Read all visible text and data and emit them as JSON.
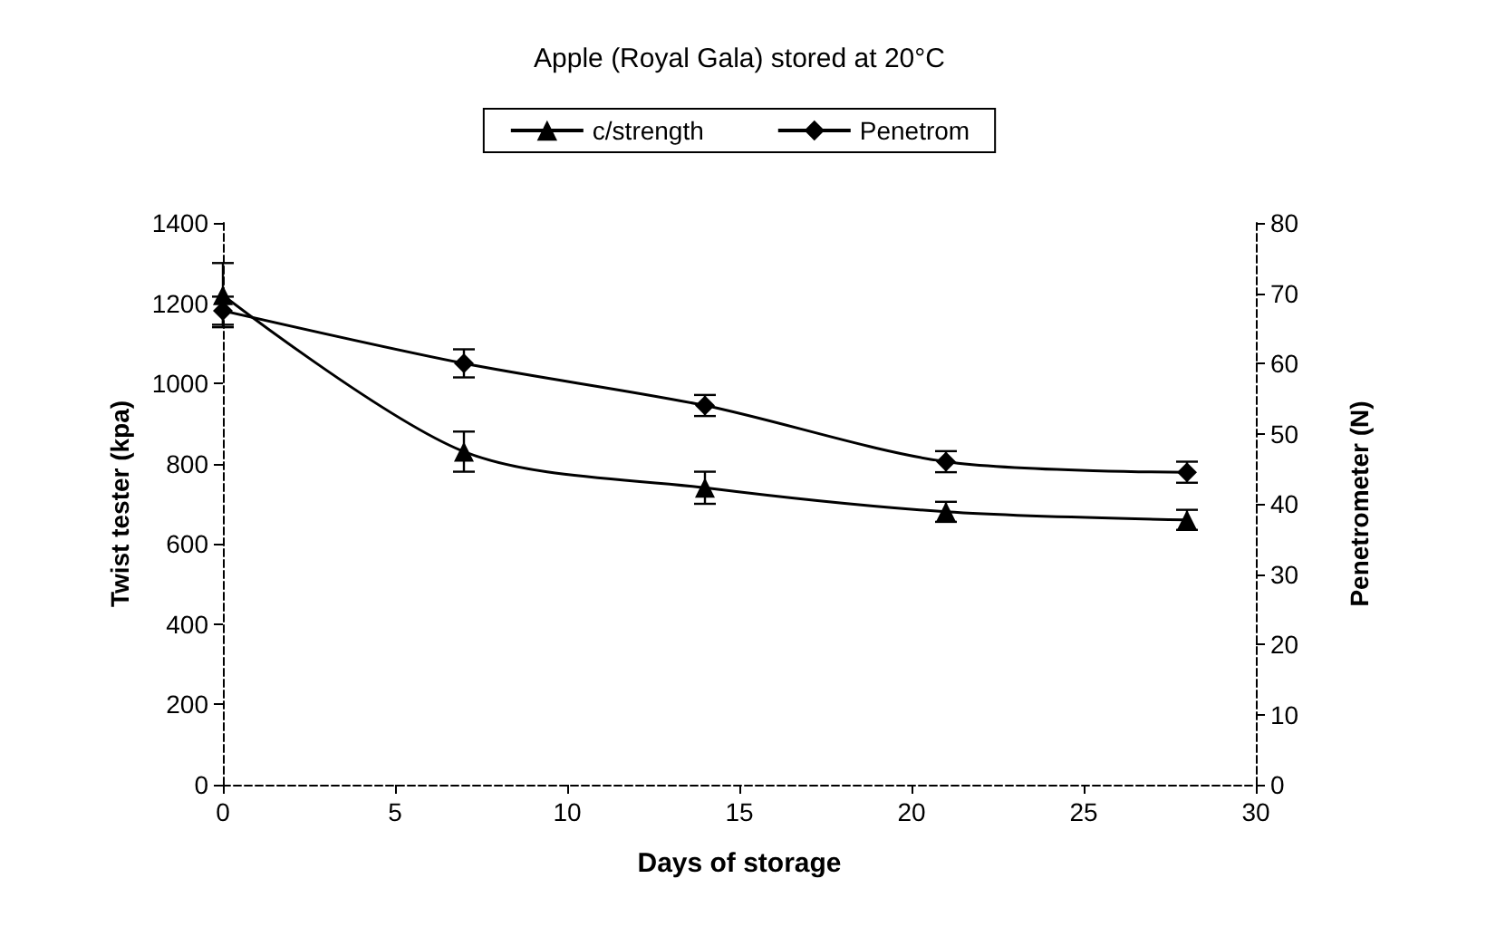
{
  "chart_data": {
    "type": "line",
    "title": "Apple (Royal Gala) stored at 20°C",
    "xlabel": "Days of storage",
    "ylabel": "Twist tester (kpa)",
    "y2label": "Penetrometer (N)",
    "x": [
      0,
      7,
      14,
      21,
      28
    ],
    "series": [
      {
        "name": "c/strength",
        "color": "#000000",
        "marker": "triangle",
        "values": [
          1220,
          830,
          740,
          680,
          660
        ],
        "errors": [
          80,
          50,
          40,
          25,
          25
        ]
      },
      {
        "name": "Penetrom",
        "color": "#000000",
        "marker": "diamond",
        "axis": "y2",
        "values": [
          67.5,
          60,
          54,
          46,
          44.5
        ],
        "errors": [
          2,
          2,
          1.5,
          1.5,
          1.5
        ]
      }
    ],
    "xlim": [
      0,
      30
    ],
    "xticks": [
      0,
      5,
      10,
      15,
      20,
      25,
      30
    ],
    "ylim": [
      0,
      1400
    ],
    "yticks": [
      0,
      200,
      400,
      600,
      800,
      1000,
      1200,
      1400
    ],
    "y2lim": [
      0,
      80
    ],
    "y2ticks": [
      0,
      10,
      20,
      30,
      40,
      50,
      60,
      70,
      80
    ],
    "grid": false,
    "legend": "top",
    "line_style": "solid"
  }
}
